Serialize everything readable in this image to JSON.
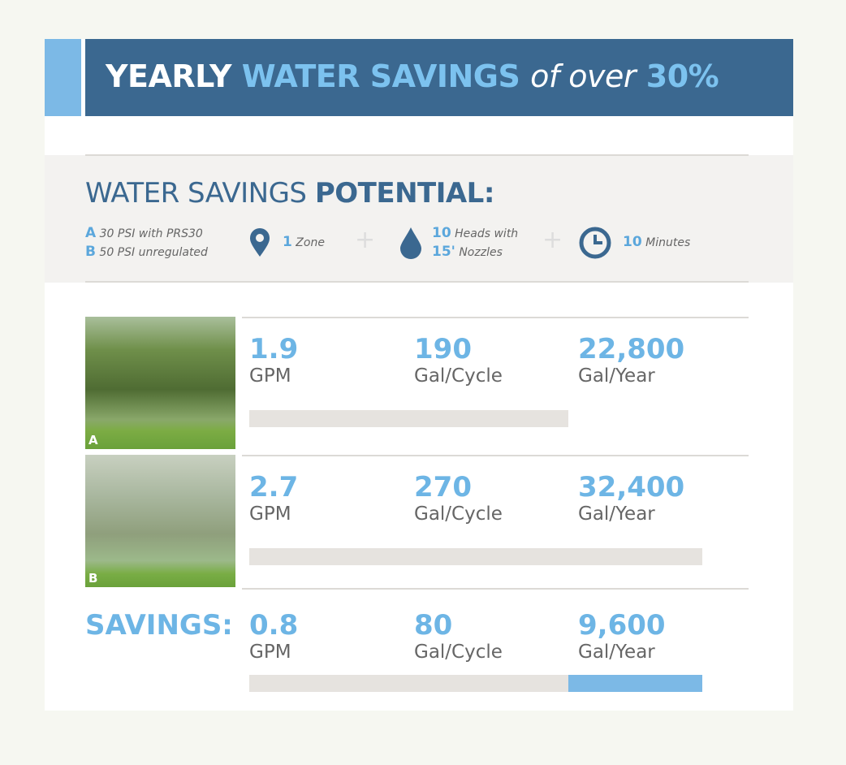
{
  "header": {
    "title_parts": [
      "YEARLY",
      "WATER SAVINGS",
      "of over",
      "30%"
    ]
  },
  "potential": {
    "title_parts": [
      "WATER SAVINGS",
      "POTENTIAL:"
    ],
    "legend": [
      {
        "letter": "A",
        "text": "30 PSI with PRS30"
      },
      {
        "letter": "B",
        "text": "50 PSI unregulated"
      }
    ],
    "zone": {
      "number": 1,
      "text": "Zone"
    },
    "heads": {
      "number": 10,
      "text": "Heads with",
      "size": "15'",
      "size_text": "Nozzles"
    },
    "time": {
      "number": 10,
      "text": "Minutes"
    }
  },
  "rows": [
    {
      "photo_label": "A",
      "gpm": 1.9,
      "gpm_unit": "GPM",
      "cycle": 190,
      "cycle_unit": "Gal/Cycle",
      "year": {
        "value": 22800,
        "label": "22,800"
      },
      "year_unit": "Gal/Year"
    },
    {
      "photo_label": "B",
      "gpm": 2.7,
      "gpm_unit": "GPM",
      "cycle": 270,
      "cycle_unit": "Gal/Cycle",
      "year": {
        "value": 32400,
        "label": "32,400"
      },
      "year_unit": "Gal/Year"
    }
  ],
  "savings": {
    "label": "SAVINGS:",
    "gpm": 0.8,
    "gpm_unit": "GPM",
    "cycle": 80,
    "cycle_unit": "Gal/Cycle",
    "year": {
      "value": 9600,
      "label": "9,600"
    },
    "year_unit": "Gal/Year"
  }
}
